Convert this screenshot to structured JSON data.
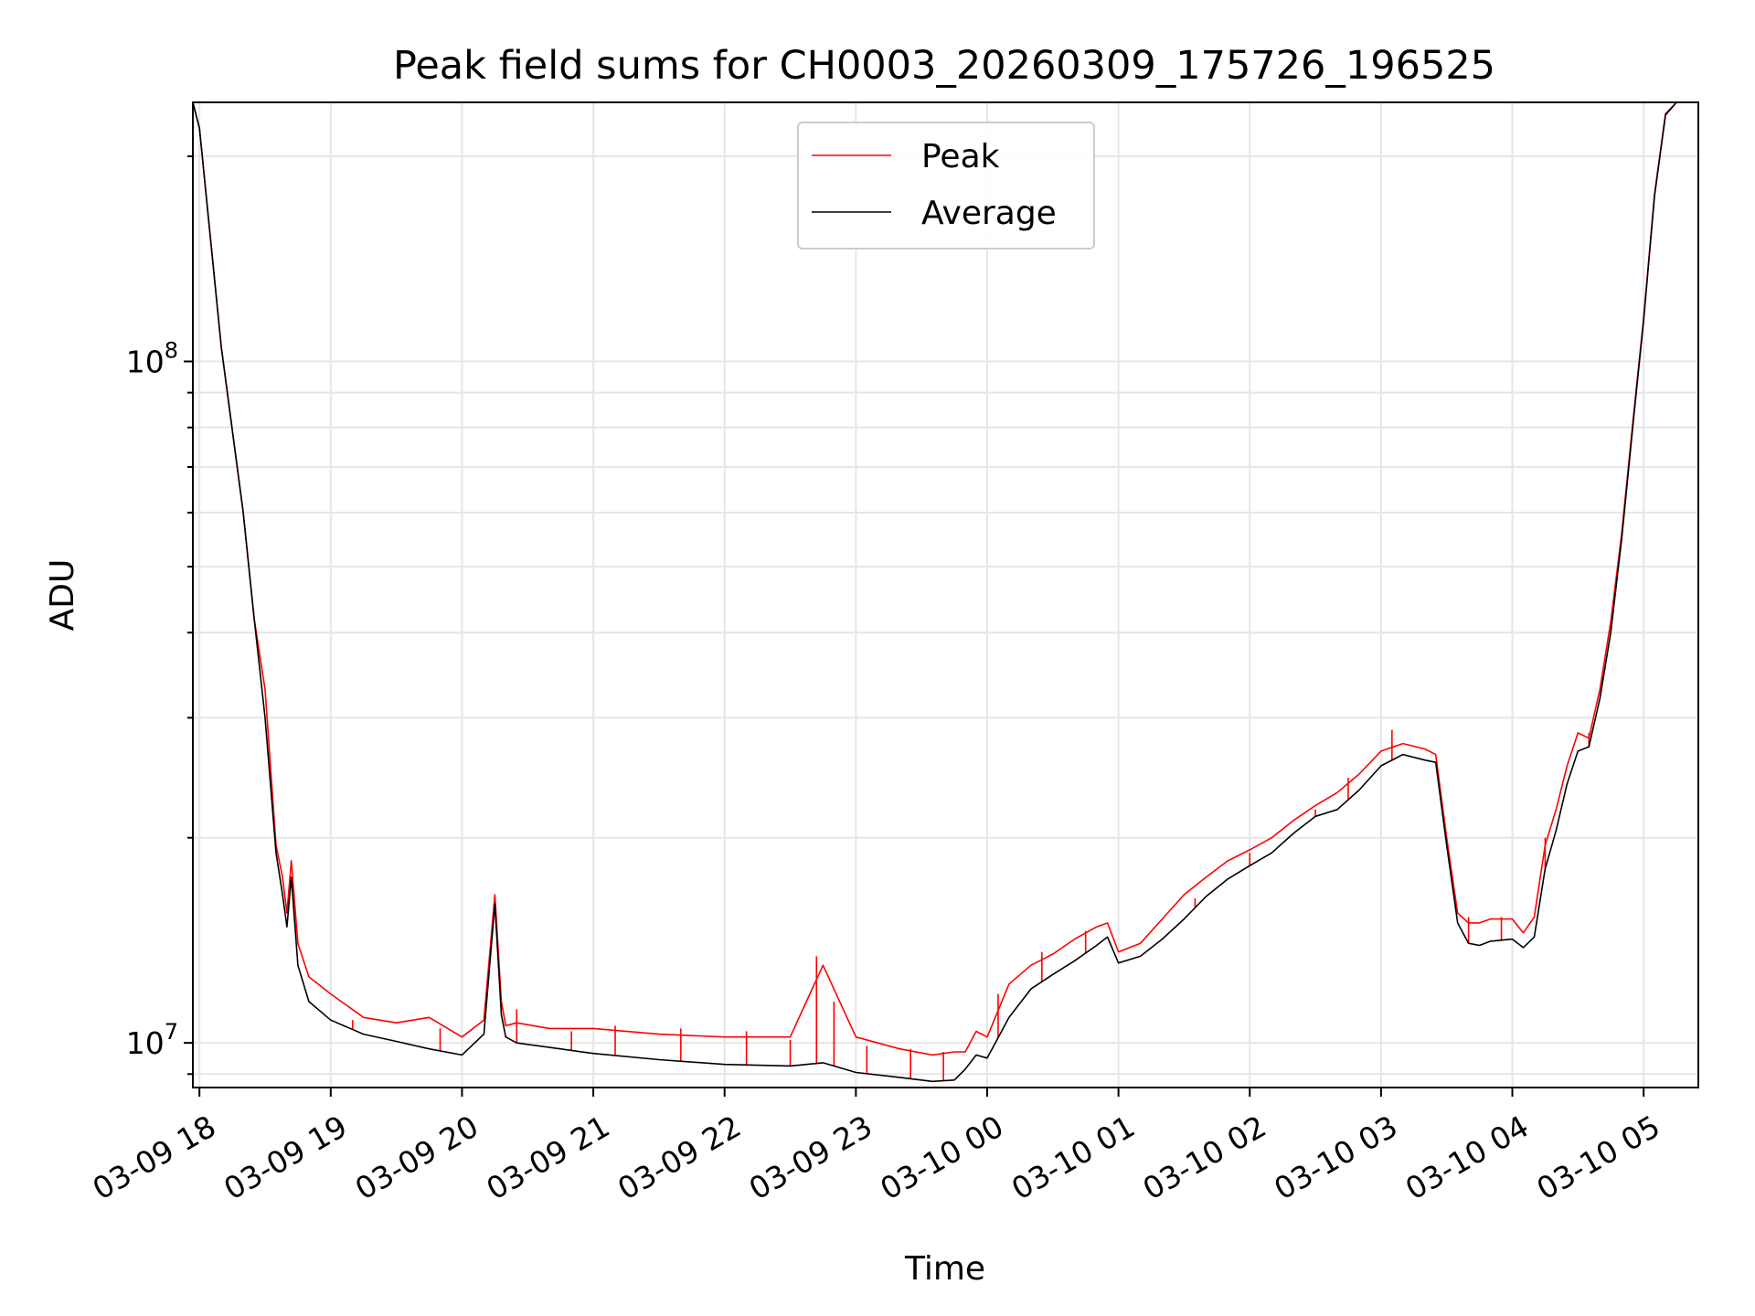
{
  "chart_data": {
    "type": "line",
    "title": "Peak field sums for CH0003_20260309_175726_196525",
    "xlabel": "Time",
    "ylabel": "ADU",
    "y_scale": "log",
    "ylim": [
      8600000,
      240000000
    ],
    "xlim": [
      "03-09 17:57",
      "03-10 05:25"
    ],
    "grid": true,
    "grid_color": "#e6e6e6",
    "legend_position": "top-center",
    "x_ticks": [
      "03-09 18",
      "03-09 19",
      "03-09 20",
      "03-09 21",
      "03-09 22",
      "03-09 23",
      "03-10 00",
      "03-10 01",
      "03-10 02",
      "03-10 03",
      "03-10 04",
      "03-10 05"
    ],
    "y_ticks": [
      {
        "value": 10000000,
        "base": "10",
        "exp": "7"
      },
      {
        "value": 100000000,
        "base": "10",
        "exp": "8"
      }
    ],
    "series": [
      {
        "name": "Peak",
        "color": "#ff0000"
      },
      {
        "name": "Average",
        "color": "#000000"
      }
    ],
    "x": [
      "03-09 17:57",
      "03-09 18:00",
      "03-09 18:10",
      "03-09 18:20",
      "03-09 18:25",
      "03-09 18:30",
      "03-09 18:35",
      "03-09 18:38",
      "03-09 18:40",
      "03-09 18:42",
      "03-09 18:45",
      "03-09 18:50",
      "03-09 19:00",
      "03-09 19:15",
      "03-09 19:30",
      "03-09 19:45",
      "03-09 20:00",
      "03-09 20:10",
      "03-09 20:15",
      "03-09 20:18",
      "03-09 20:20",
      "03-09 20:25",
      "03-09 20:40",
      "03-09 21:00",
      "03-09 21:30",
      "03-09 22:00",
      "03-09 22:30",
      "03-09 22:45",
      "03-09 23:00",
      "03-09 23:20",
      "03-09 23:35",
      "03-09 23:45",
      "03-09 23:50",
      "03-09 23:55",
      "03-10 00:00",
      "03-10 00:10",
      "03-10 00:20",
      "03-10 00:30",
      "03-10 00:40",
      "03-10 00:50",
      "03-10 00:55",
      "03-10 01:00",
      "03-10 01:10",
      "03-10 01:20",
      "03-10 01:30",
      "03-10 01:40",
      "03-10 01:50",
      "03-10 02:00",
      "03-10 02:10",
      "03-10 02:20",
      "03-10 02:30",
      "03-10 02:40",
      "03-10 02:50",
      "03-10 03:00",
      "03-10 03:10",
      "03-10 03:20",
      "03-10 03:25",
      "03-10 03:30",
      "03-10 03:35",
      "03-10 03:40",
      "03-10 03:45",
      "03-10 03:50",
      "03-10 04:00",
      "03-10 04:05",
      "03-10 04:10",
      "03-10 04:15",
      "03-10 04:20",
      "03-10 04:25",
      "03-10 04:30",
      "03-10 04:35",
      "03-10 04:40",
      "03-10 04:45",
      "03-10 04:50",
      "03-10 04:55",
      "03-10 05:00",
      "03-10 05:05",
      "03-10 05:10",
      "03-10 05:15",
      "03-10 05:20",
      "03-10 05:25"
    ],
    "average": [
      240000000,
      220000000,
      105000000,
      60000000,
      42000000,
      30000000,
      19000000,
      16500000,
      14800000,
      17500000,
      13000000,
      11500000,
      10800000,
      10300000,
      10050000,
      9800000,
      9600000,
      10300000,
      16000000,
      11000000,
      10200000,
      10000000,
      9850000,
      9650000,
      9450000,
      9300000,
      9250000,
      9350000,
      9050000,
      8900000,
      8780000,
      8820000,
      9150000,
      9600000,
      9500000,
      10900000,
      12000000,
      12600000,
      13200000,
      13900000,
      14300000,
      13100000,
      13400000,
      14200000,
      15200000,
      16400000,
      17400000,
      18200000,
      19000000,
      20300000,
      21500000,
      22000000,
      23500000,
      25500000,
      26500000,
      26000000,
      25800000,
      19500000,
      15000000,
      14000000,
      13900000,
      14100000,
      14200000,
      13800000,
      14300000,
      18000000,
      20500000,
      24000000,
      26800000,
      27200000,
      32000000,
      40000000,
      55000000,
      80000000,
      115000000,
      175000000,
      230000000,
      240000000,
      240000000,
      240000000
    ],
    "peak": [
      240000000,
      220000000,
      105000000,
      60000000,
      42000000,
      33000000,
      19500000,
      17500000,
      15500000,
      18500000,
      14000000,
      12500000,
      11800000,
      10900000,
      10700000,
      10900000,
      10200000,
      10800000,
      16500000,
      11500000,
      10600000,
      10700000,
      10500000,
      10500000,
      10300000,
      10200000,
      10200000,
      13000000,
      10200000,
      9800000,
      9600000,
      9700000,
      9700000,
      10400000,
      10200000,
      12200000,
      13000000,
      13500000,
      14200000,
      14800000,
      15000000,
      13600000,
      14000000,
      15200000,
      16500000,
      17500000,
      18500000,
      19200000,
      20000000,
      21200000,
      22300000,
      23300000,
      24800000,
      26800000,
      27500000,
      27000000,
      26500000,
      20000000,
      15500000,
      15000000,
      15000000,
      15200000,
      15200000,
      14500000,
      15300000,
      19500000,
      22000000,
      25500000,
      28500000,
      28000000,
      33000000,
      41500000,
      56000000,
      81000000,
      116000000,
      176000000,
      231000000,
      240000000,
      240000000,
      240000000
    ],
    "peak_spikes": [
      {
        "x": "03-09 19:10",
        "y": 10800000
      },
      {
        "x": "03-09 19:50",
        "y": 10500000
      },
      {
        "x": "03-09 20:25",
        "y": 11200000
      },
      {
        "x": "03-09 20:50",
        "y": 10400000
      },
      {
        "x": "03-09 21:10",
        "y": 10600000
      },
      {
        "x": "03-09 21:40",
        "y": 10500000
      },
      {
        "x": "03-09 22:10",
        "y": 10400000
      },
      {
        "x": "03-09 22:30",
        "y": 10100000
      },
      {
        "x": "03-09 22:42",
        "y": 13400000
      },
      {
        "x": "03-09 22:50",
        "y": 11500000
      },
      {
        "x": "03-09 23:05",
        "y": 9900000
      },
      {
        "x": "03-09 23:25",
        "y": 9800000
      },
      {
        "x": "03-09 23:40",
        "y": 9700000
      },
      {
        "x": "03-10 00:05",
        "y": 11800000
      },
      {
        "x": "03-10 00:25",
        "y": 13600000
      },
      {
        "x": "03-10 00:45",
        "y": 14600000
      },
      {
        "x": "03-10 01:35",
        "y": 16300000
      },
      {
        "x": "03-10 02:00",
        "y": 19000000
      },
      {
        "x": "03-10 02:30",
        "y": 22000000
      },
      {
        "x": "03-10 02:45",
        "y": 24500000
      },
      {
        "x": "03-10 03:05",
        "y": 28800000
      },
      {
        "x": "03-10 03:40",
        "y": 15300000
      },
      {
        "x": "03-10 03:55",
        "y": 15300000
      },
      {
        "x": "03-10 04:15",
        "y": 20000000
      },
      {
        "x": "03-10 04:35",
        "y": 28500000
      }
    ]
  }
}
